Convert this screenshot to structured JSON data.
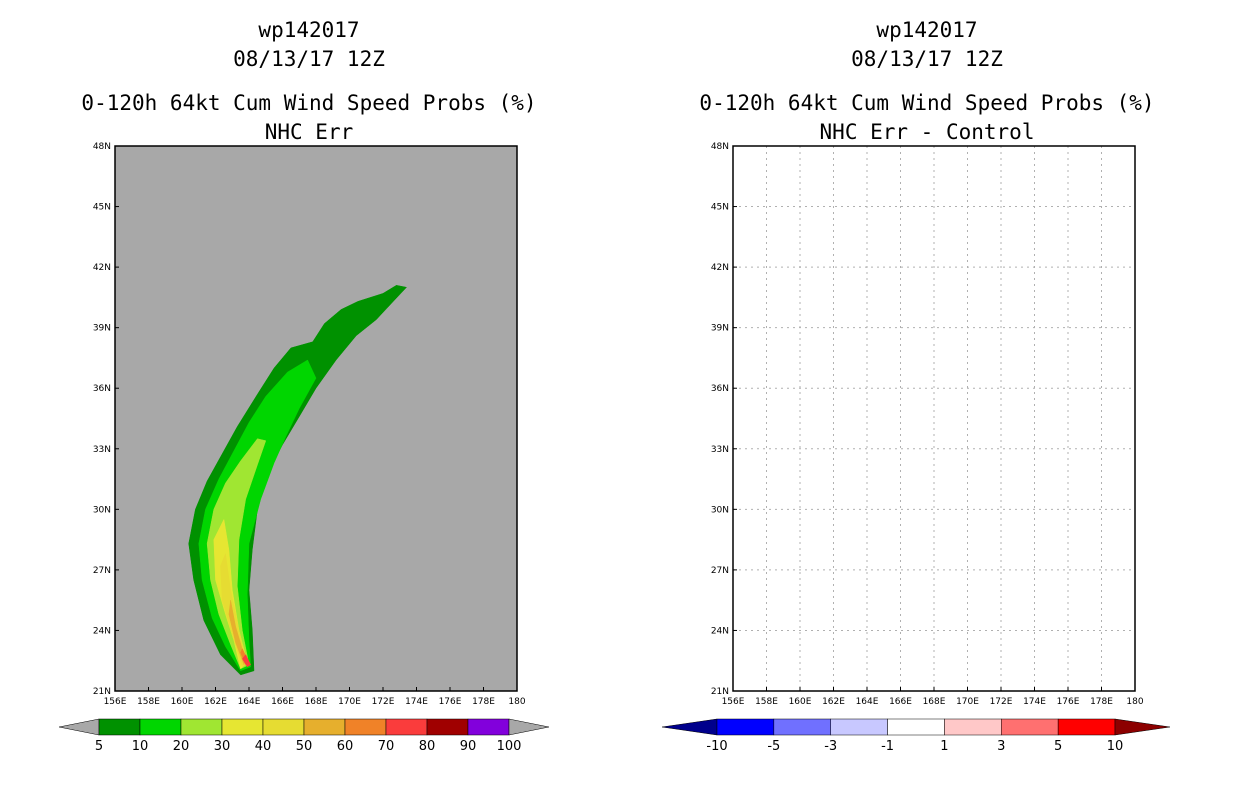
{
  "chart_data": [
    {
      "type": "heatmap",
      "title": "wp142017",
      "subtitle": "08/13/17 12Z",
      "product": "0-120h 64kt Cum Wind Speed Probs (%)",
      "variant": "NHC Err",
      "xlabel": "",
      "ylabel": "",
      "xlim": [
        156,
        180
      ],
      "ylim": [
        21,
        48
      ],
      "x_ticks": [
        "156E",
        "158E",
        "160E",
        "162E",
        "164E",
        "166E",
        "168E",
        "170E",
        "172E",
        "174E",
        "176E",
        "178E",
        "180"
      ],
      "y_ticks": [
        "21N",
        "24N",
        "27N",
        "30N",
        "33N",
        "36N",
        "39N",
        "42N",
        "45N",
        "48N"
      ],
      "background_color": "#a8a8a8",
      "grid": false,
      "colorbar": {
        "labels": [
          "5",
          "10",
          "20",
          "30",
          "40",
          "50",
          "60",
          "70",
          "80",
          "90",
          "100"
        ],
        "colors": [
          "#009100",
          "#00d600",
          "#a0e632",
          "#e6e632",
          "#e6dc32",
          "#e6af2d",
          "#f08228",
          "#fa3c3c",
          "#a00000",
          "#8200dc"
        ]
      },
      "bands": [
        {
          "level": "5-10",
          "color": "#009100",
          "points": [
            [
              163.5,
              21.8
            ],
            [
              162.3,
              22.8
            ],
            [
              161.3,
              24.5
            ],
            [
              160.7,
              26.5
            ],
            [
              160.4,
              28.3
            ],
            [
              160.8,
              30.0
            ],
            [
              161.5,
              31.4
            ],
            [
              162.3,
              32.6
            ],
            [
              163.3,
              34.1
            ],
            [
              164.5,
              35.7
            ],
            [
              165.5,
              37.0
            ],
            [
              166.5,
              38.0
            ],
            [
              167.8,
              38.3
            ],
            [
              168.5,
              39.2
            ],
            [
              169.5,
              39.9
            ],
            [
              170.5,
              40.3
            ],
            [
              172.0,
              40.7
            ],
            [
              172.8,
              41.1
            ],
            [
              173.4,
              41.0
            ],
            [
              172.5,
              40.2
            ],
            [
              171.6,
              39.4
            ],
            [
              170.4,
              38.6
            ],
            [
              169.2,
              37.4
            ],
            [
              168.0,
              36.0
            ],
            [
              167.0,
              34.6
            ],
            [
              166.0,
              33.2
            ],
            [
              165.1,
              31.8
            ],
            [
              164.5,
              30.0
            ],
            [
              164.2,
              28.0
            ],
            [
              164.0,
              26.0
            ],
            [
              164.2,
              24.0
            ],
            [
              164.3,
              22.0
            ]
          ]
        },
        {
          "level": "10-20",
          "color": "#00d600",
          "points": [
            [
              163.5,
              22.0
            ],
            [
              162.6,
              23.2
            ],
            [
              161.8,
              24.6
            ],
            [
              161.2,
              26.5
            ],
            [
              161.0,
              28.3
            ],
            [
              161.4,
              30.0
            ],
            [
              162.2,
              31.5
            ],
            [
              163.1,
              32.9
            ],
            [
              164.0,
              34.3
            ],
            [
              165.0,
              35.6
            ],
            [
              166.3,
              36.8
            ],
            [
              167.5,
              37.4
            ],
            [
              168.0,
              36.5
            ],
            [
              167.0,
              35.0
            ],
            [
              166.2,
              33.6
            ],
            [
              165.5,
              32.3
            ],
            [
              164.7,
              30.5
            ],
            [
              164.0,
              28.3
            ],
            [
              163.9,
              25.8
            ],
            [
              164.0,
              23.5
            ],
            [
              164.1,
              22.2
            ]
          ]
        },
        {
          "level": "20-30",
          "color": "#a0e632",
          "points": [
            [
              163.5,
              22.1
            ],
            [
              162.9,
              23.3
            ],
            [
              162.2,
              24.8
            ],
            [
              161.7,
              26.5
            ],
            [
              161.5,
              28.3
            ],
            [
              161.9,
              30.0
            ],
            [
              162.6,
              31.3
            ],
            [
              163.5,
              32.4
            ],
            [
              164.5,
              33.5
            ],
            [
              165.0,
              33.4
            ],
            [
              164.5,
              32.2
            ],
            [
              163.8,
              30.5
            ],
            [
              163.4,
              28.5
            ],
            [
              163.3,
              26.2
            ],
            [
              163.6,
              24.0
            ],
            [
              164.0,
              22.3
            ]
          ]
        },
        {
          "level": "30-40",
          "color": "#e6e632",
          "points": [
            [
              163.5,
              22.1
            ],
            [
              163.1,
              23.5
            ],
            [
              162.6,
              24.8
            ],
            [
              162.0,
              26.5
            ],
            [
              161.9,
              28.5
            ],
            [
              162.5,
              29.5
            ],
            [
              162.8,
              28.0
            ],
            [
              163.0,
              26.0
            ],
            [
              163.4,
              24.0
            ],
            [
              163.9,
              22.4
            ]
          ]
        },
        {
          "level": "40-50",
          "color": "#e6dc32",
          "points": [
            [
              163.6,
              22.2
            ],
            [
              163.0,
              23.8
            ],
            [
              162.4,
              25.5
            ],
            [
              162.3,
              27.2
            ],
            [
              162.6,
              27.8
            ],
            [
              162.9,
              26.0
            ],
            [
              163.4,
              24.0
            ],
            [
              163.9,
              22.4
            ]
          ]
        },
        {
          "level": "50-60",
          "color": "#e6af2d",
          "points": [
            [
              163.7,
              22.3
            ],
            [
              163.2,
              23.4
            ],
            [
              162.8,
              24.8
            ],
            [
              162.9,
              25.5
            ],
            [
              163.2,
              24.2
            ],
            [
              163.8,
              22.5
            ]
          ]
        },
        {
          "level": "60-70",
          "color": "#f08228",
          "points": [
            [
              163.8,
              22.3
            ],
            [
              163.5,
              22.9
            ],
            [
              163.6,
              23.1
            ],
            [
              164.0,
              22.4
            ]
          ]
        },
        {
          "level": "70-80",
          "color": "#fa3c3c",
          "points": [
            [
              163.9,
              22.2
            ],
            [
              163.6,
              22.6
            ],
            [
              163.8,
              22.8
            ],
            [
              164.1,
              22.3
            ]
          ]
        }
      ]
    },
    {
      "type": "heatmap",
      "title": "wp142017",
      "subtitle": "08/13/17 12Z",
      "product": "0-120h 64kt Cum Wind Speed Probs (%)",
      "variant": "NHC Err - Control",
      "xlabel": "",
      "ylabel": "",
      "xlim": [
        156,
        180
      ],
      "ylim": [
        21,
        48
      ],
      "x_ticks": [
        "156E",
        "158E",
        "160E",
        "162E",
        "164E",
        "166E",
        "168E",
        "170E",
        "172E",
        "174E",
        "176E",
        "178E",
        "180"
      ],
      "y_ticks": [
        "21N",
        "24N",
        "27N",
        "30N",
        "33N",
        "36N",
        "39N",
        "42N",
        "45N",
        "48N"
      ],
      "background_color": "#ffffff",
      "grid": true,
      "colorbar": {
        "labels": [
          "-10",
          "-5",
          "-3",
          "-1",
          "1",
          "3",
          "5",
          "10"
        ],
        "colors": [
          "#00008c",
          "#0000ff",
          "#7070ff",
          "#c8c8ff",
          "#ffffff",
          "#ffc8c8",
          "#ff7070",
          "#ff0000",
          "#8c0000"
        ]
      },
      "bands": []
    }
  ]
}
